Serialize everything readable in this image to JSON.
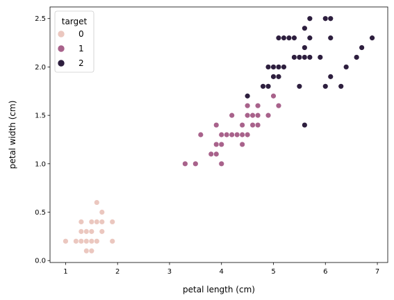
{
  "chart_data": {
    "type": "scatter",
    "xlabel": "petal length (cm)",
    "ylabel": "petal width (cm)",
    "xlim": [
      0.7,
      7.2
    ],
    "ylim": [
      -0.02,
      2.62
    ],
    "x_ticks": [
      1,
      2,
      3,
      4,
      5,
      6,
      7
    ],
    "x_tick_labels": [
      "1",
      "2",
      "3",
      "4",
      "5",
      "6",
      "7"
    ],
    "y_ticks": [
      0.0,
      0.5,
      1.0,
      1.5,
      2.0,
      2.5
    ],
    "y_tick_labels": [
      "0.0",
      "0.5",
      "1.0",
      "1.5",
      "2.0",
      "2.5"
    ],
    "grid": false,
    "legend": {
      "title": "target",
      "position": "top-left",
      "entries": [
        "0",
        "1",
        "2"
      ]
    },
    "series": [
      {
        "name": "0",
        "color": "#ebc7bf",
        "points": [
          [
            1.0,
            0.2
          ],
          [
            1.2,
            0.2
          ],
          [
            1.3,
            0.2
          ],
          [
            1.4,
            0.2
          ],
          [
            1.5,
            0.2
          ],
          [
            1.6,
            0.2
          ],
          [
            1.9,
            0.2
          ],
          [
            1.4,
            0.1
          ],
          [
            1.5,
            0.1
          ],
          [
            1.3,
            0.3
          ],
          [
            1.4,
            0.3
          ],
          [
            1.5,
            0.3
          ],
          [
            1.7,
            0.3
          ],
          [
            1.3,
            0.4
          ],
          [
            1.5,
            0.4
          ],
          [
            1.6,
            0.4
          ],
          [
            1.7,
            0.4
          ],
          [
            1.9,
            0.4
          ],
          [
            1.7,
            0.5
          ],
          [
            1.6,
            0.6
          ]
        ]
      },
      {
        "name": "1",
        "color": "#a8628b",
        "points": [
          [
            3.3,
            1.0
          ],
          [
            3.5,
            1.0
          ],
          [
            4.0,
            1.0
          ],
          [
            3.8,
            1.1
          ],
          [
            3.9,
            1.1
          ],
          [
            3.9,
            1.2
          ],
          [
            4.0,
            1.2
          ],
          [
            4.4,
            1.2
          ],
          [
            3.6,
            1.3
          ],
          [
            4.0,
            1.3
          ],
          [
            4.1,
            1.3
          ],
          [
            4.2,
            1.3
          ],
          [
            4.3,
            1.3
          ],
          [
            4.4,
            1.3
          ],
          [
            4.5,
            1.3
          ],
          [
            3.9,
            1.4
          ],
          [
            4.4,
            1.4
          ],
          [
            4.6,
            1.4
          ],
          [
            4.7,
            1.4
          ],
          [
            4.2,
            1.5
          ],
          [
            4.5,
            1.5
          ],
          [
            4.6,
            1.5
          ],
          [
            4.7,
            1.5
          ],
          [
            4.9,
            1.5
          ],
          [
            4.5,
            1.6
          ],
          [
            4.7,
            1.6
          ],
          [
            5.1,
            1.6
          ],
          [
            5.0,
            1.7
          ]
        ]
      },
      {
        "name": "2",
        "color": "#2d1e3e",
        "points": [
          [
            5.6,
            1.4
          ],
          [
            4.5,
            1.7
          ],
          [
            4.8,
            1.8
          ],
          [
            4.9,
            1.8
          ],
          [
            5.5,
            1.8
          ],
          [
            6.0,
            1.8
          ],
          [
            6.3,
            1.8
          ],
          [
            5.0,
            1.9
          ],
          [
            5.1,
            1.9
          ],
          [
            6.1,
            1.9
          ],
          [
            4.9,
            2.0
          ],
          [
            5.0,
            2.0
          ],
          [
            5.1,
            2.0
          ],
          [
            5.2,
            2.0
          ],
          [
            6.4,
            2.0
          ],
          [
            5.4,
            2.1
          ],
          [
            5.5,
            2.1
          ],
          [
            5.6,
            2.1
          ],
          [
            5.7,
            2.1
          ],
          [
            5.9,
            2.1
          ],
          [
            6.6,
            2.1
          ],
          [
            5.6,
            2.2
          ],
          [
            6.7,
            2.2
          ],
          [
            5.1,
            2.3
          ],
          [
            5.2,
            2.3
          ],
          [
            5.3,
            2.3
          ],
          [
            5.4,
            2.3
          ],
          [
            5.7,
            2.3
          ],
          [
            6.1,
            2.3
          ],
          [
            6.9,
            2.3
          ],
          [
            5.6,
            2.4
          ],
          [
            5.7,
            2.5
          ],
          [
            6.0,
            2.5
          ],
          [
            6.1,
            2.5
          ]
        ]
      }
    ]
  }
}
